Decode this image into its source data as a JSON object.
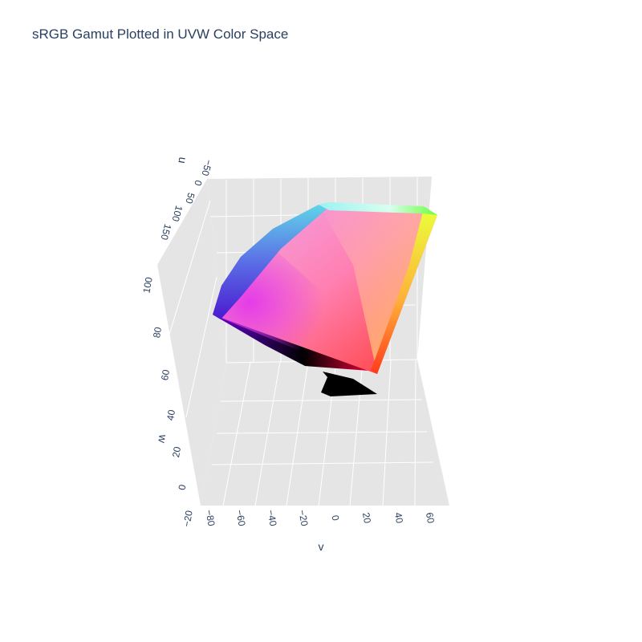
{
  "chart_data": {
    "type": "mesh3d",
    "title": "sRGB Gamut Plotted in UVW Color Space",
    "axes": {
      "u": {
        "label": "u",
        "ticks": [
          "−50",
          "0",
          "50",
          "100",
          "150"
        ]
      },
      "v": {
        "label": "v",
        "ticks": [
          "−80",
          "−60",
          "−40",
          "−20",
          "0",
          "20",
          "40",
          "60"
        ]
      },
      "w": {
        "label": "w",
        "ticks": [
          "−20",
          "0",
          "20",
          "40",
          "60",
          "80",
          "100"
        ]
      }
    },
    "vertices": [
      {
        "name": "black",
        "u": 0,
        "v": 0,
        "w": -17,
        "color": "#000000"
      },
      {
        "name": "red",
        "u": 171,
        "v": 59,
        "w": 52,
        "color": "#ff0000"
      },
      {
        "name": "green",
        "u": -69,
        "v": 76,
        "w": 87,
        "color": "#00ff00"
      },
      {
        "name": "blue",
        "u": 3,
        "v": -84,
        "w": 33,
        "color": "#0000ff"
      },
      {
        "name": "yellow",
        "u": 28,
        "v": 94,
        "w": 96,
        "color": "#ffff00"
      },
      {
        "name": "cyan",
        "u": -83,
        "v": -22,
        "w": 90,
        "color": "#00ffff"
      },
      {
        "name": "magenta",
        "u": 125,
        "v": -48,
        "w": 59,
        "color": "#ff00ff"
      },
      {
        "name": "white",
        "u": 0,
        "v": 0,
        "w": 99,
        "color": "#ffffff"
      }
    ],
    "grid": true,
    "background": "#e5e5e5",
    "gridColor": "#ffffff"
  }
}
